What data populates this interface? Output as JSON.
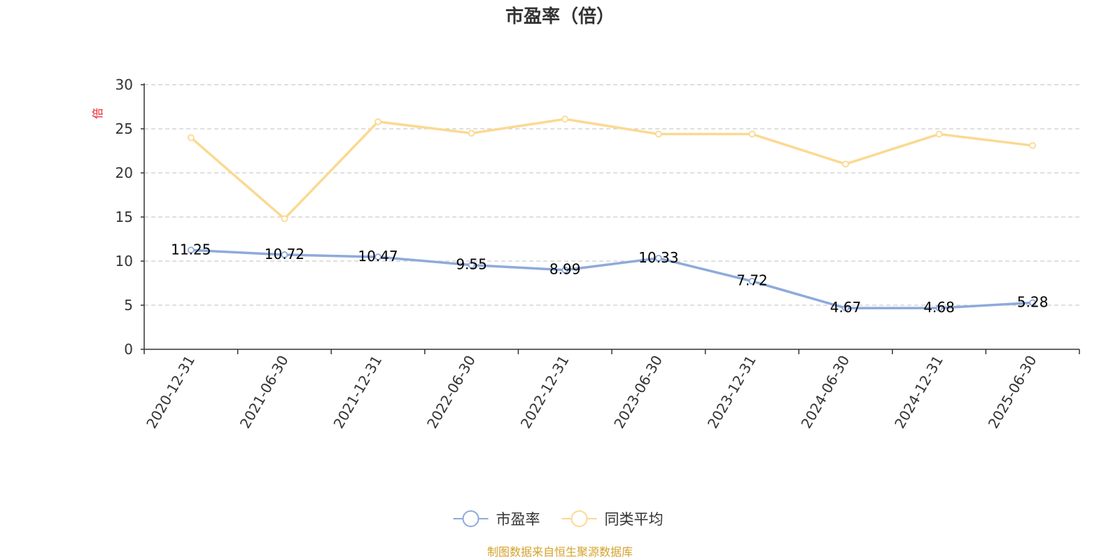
{
  "chart_data": {
    "type": "line",
    "title": "市盈率（倍）",
    "y_unit": "倍",
    "categories": [
      "2020-12-31",
      "2021-06-30",
      "2021-12-31",
      "2022-06-30",
      "2022-12-31",
      "2023-06-30",
      "2023-12-31",
      "2024-06-30",
      "2024-12-31",
      "2025-06-30"
    ],
    "series": [
      {
        "name": "市盈率",
        "color": "#8eaadb",
        "show_labels": true,
        "values": [
          11.25,
          10.72,
          10.47,
          9.55,
          8.99,
          10.33,
          7.72,
          4.67,
          4.68,
          5.28
        ]
      },
      {
        "name": "同类平均",
        "color": "#fbd992",
        "show_labels": false,
        "values": [
          24.0,
          14.8,
          25.8,
          24.5,
          26.1,
          24.4,
          24.4,
          21.0,
          24.4,
          23.1
        ]
      }
    ],
    "ylim": [
      0,
      30
    ],
    "yticks": [
      0,
      5,
      10,
      15,
      20,
      25,
      30
    ],
    "grid": "horizontal dashed",
    "legend_position": "bottom-center"
  },
  "source_note": "制图数据来自恒生聚源数据库",
  "colors": {
    "unit_label": "#e8202a",
    "source_note": "#d4a22c",
    "axis": "#333333",
    "grid": "#cccccc"
  }
}
